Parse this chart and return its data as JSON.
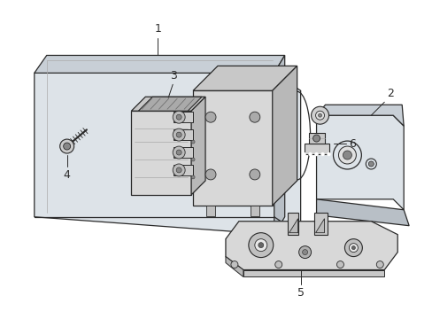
{
  "bg_color": "#ffffff",
  "line_color": "#2a2a2a",
  "panel_fill": "#dde3e8",
  "panel_fill2": "#c8cfd6",
  "panel_fill3": "#b8bfc6",
  "white": "#ffffff",
  "light_gray": "#e8e8e8",
  "mid_gray": "#c0c0c0",
  "dark_gray": "#888888",
  "figsize": [
    4.89,
    3.6
  ],
  "dpi": 100
}
